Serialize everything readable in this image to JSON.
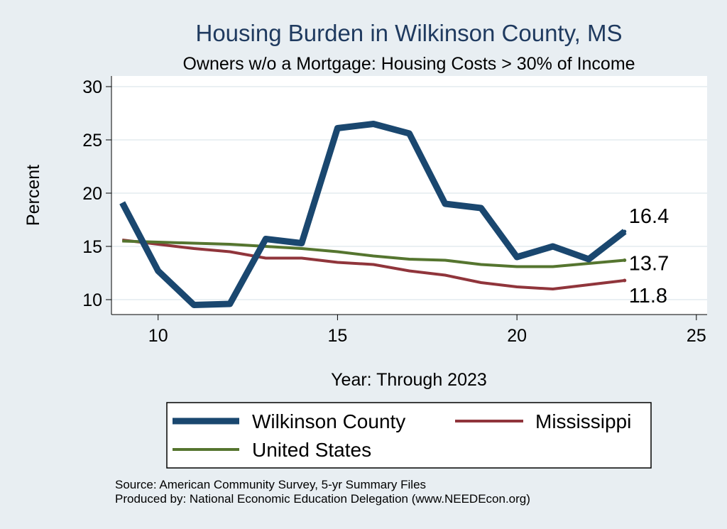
{
  "chart_data": {
    "type": "line",
    "title": "Housing Burden in Wilkinson County, MS",
    "subtitle": "Owners w/o a Mortgage: Housing Costs > 30% of Income",
    "xlabel": "Year: Through 2023",
    "ylabel": "Percent",
    "xlim": [
      8.7,
      25.3
    ],
    "ylim": [
      8.6,
      31.0
    ],
    "xticks": [
      "10",
      "15",
      "20",
      "25"
    ],
    "yticks": [
      "10",
      "15",
      "20",
      "25",
      "30"
    ],
    "grid": true,
    "legend": "bottom",
    "x": [
      9,
      10,
      11,
      12,
      13,
      14,
      15,
      16,
      17,
      18,
      19,
      20,
      21,
      22,
      23
    ],
    "series": [
      {
        "name": "Wilkinson County",
        "color": "#1a476f",
        "values": [
          19.1,
          12.7,
          9.5,
          9.6,
          15.7,
          15.3,
          26.1,
          26.5,
          25.6,
          19.0,
          18.6,
          14.0,
          15.0,
          13.8,
          16.4
        ],
        "end_label": "16.4"
      },
      {
        "name": "Mississippi",
        "color": "#90353b",
        "values": [
          15.6,
          15.2,
          14.8,
          14.5,
          13.9,
          13.9,
          13.5,
          13.3,
          12.7,
          12.3,
          11.6,
          11.2,
          11.0,
          11.4,
          11.8
        ],
        "end_label": "11.8"
      },
      {
        "name": "United States",
        "color": "#55752f",
        "values": [
          15.5,
          15.4,
          15.3,
          15.2,
          15.0,
          14.8,
          14.5,
          14.1,
          13.8,
          13.7,
          13.3,
          13.1,
          13.1,
          13.4,
          13.7
        ],
        "end_label": "13.7"
      }
    ],
    "source": "Source: American Community Survey, 5-yr Summary Files",
    "produced_by": "Produced by: National Economic Education Delegation (www.NEEDEcon.org)"
  }
}
